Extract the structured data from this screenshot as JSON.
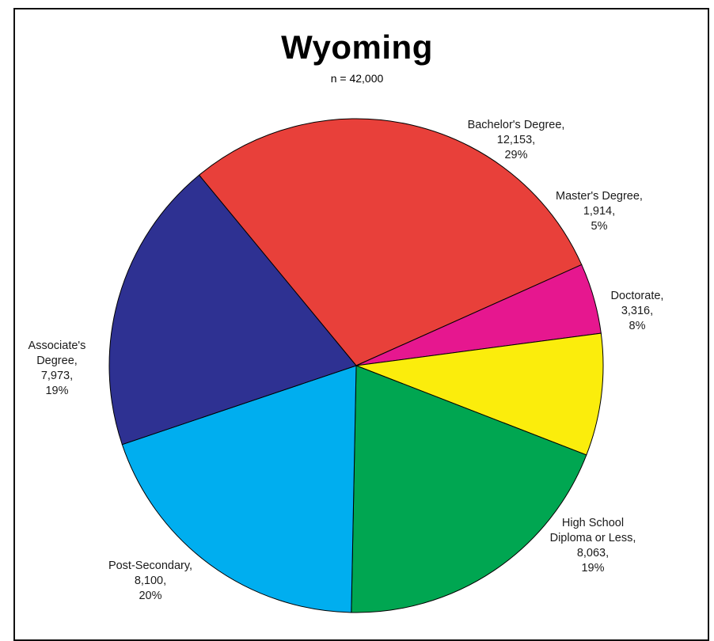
{
  "chart_data": {
    "type": "pie",
    "title": "Wyoming",
    "subtitle": "n = 42,000",
    "slices": [
      {
        "label_lines": [
          "Bachelor's Degree,",
          "12,153,",
          "29%"
        ],
        "name": "Bachelor's Degree",
        "value": 12153,
        "percent": 29,
        "color": "#e8403a"
      },
      {
        "label_lines": [
          "Master's Degree,",
          "1,914,",
          "5%"
        ],
        "name": "Master's Degree",
        "value": 1914,
        "percent": 5,
        "color": "#e6178f"
      },
      {
        "label_lines": [
          "Doctorate,",
          "3,316,",
          "8%"
        ],
        "name": "Doctorate",
        "value": 3316,
        "percent": 8,
        "color": "#fbed0c"
      },
      {
        "label_lines": [
          "High School",
          "Diploma or Less,",
          "8,063,",
          "19%"
        ],
        "name": "High School Diploma or Less",
        "value": 8063,
        "percent": 19,
        "color": "#00a651"
      },
      {
        "label_lines": [
          "Post-Secondary,",
          "8,100,",
          "20%"
        ],
        "name": "Post-Secondary",
        "value": 8100,
        "percent": 20,
        "color": "#00aeef"
      },
      {
        "label_lines": [
          "Associate's",
          "Degree,",
          "7,973,",
          "19%"
        ],
        "name": "Associate's Degree",
        "value": 7973,
        "percent": 19,
        "color": "#2e3192"
      }
    ]
  }
}
